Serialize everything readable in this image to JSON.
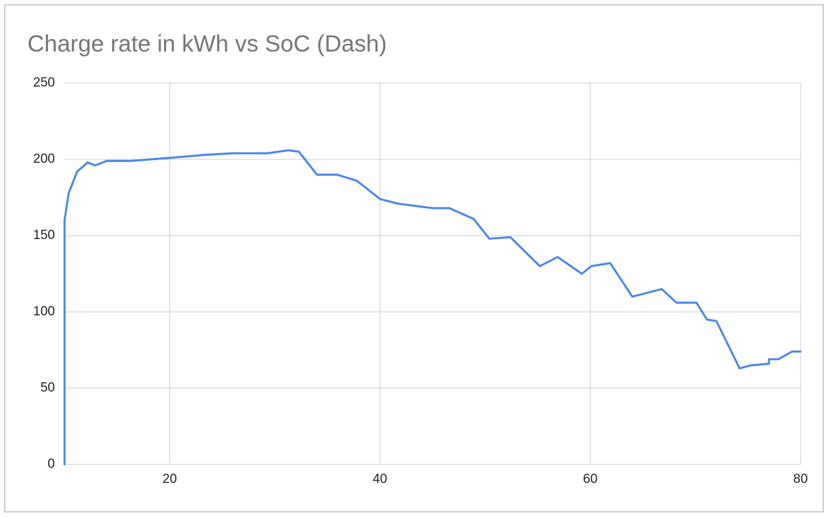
{
  "chart_data": {
    "type": "line",
    "title": "Charge rate in kWh vs SoC (Dash)",
    "x": [
      10,
      10,
      10.4,
      11.2,
      12.2,
      12.9,
      14,
      16.3,
      20,
      23.4,
      26,
      29.3,
      31.3,
      32.3,
      34,
      35.9,
      37.8,
      40,
      41.7,
      45,
      46.6,
      48.9,
      50.4,
      52.4,
      55.2,
      56.9,
      59.2,
      60.1,
      61.9,
      64,
      66.8,
      68.2,
      70.1,
      71.1,
      72,
      74.2,
      75.3,
      77,
      77,
      77.9,
      79.2,
      80
    ],
    "series": [
      {
        "name": "Charge rate",
        "color": "#4a86e8",
        "values": [
          0,
          160,
          178,
          192,
          198,
          196,
          199,
          199,
          201,
          203,
          204,
          204,
          206,
          205,
          190,
          190,
          186,
          174,
          171,
          168,
          168,
          161,
          148,
          149,
          130,
          136,
          125,
          130,
          132,
          110,
          115,
          106,
          106,
          95,
          94,
          63,
          65,
          66,
          69,
          69,
          74,
          74
        ]
      }
    ],
    "xlim": [
      10,
      80
    ],
    "xticks": [
      20,
      40,
      60,
      80
    ],
    "ylim": [
      0,
      250
    ],
    "yticks": [
      0,
      50,
      100,
      150,
      200,
      250
    ],
    "grid": true
  }
}
